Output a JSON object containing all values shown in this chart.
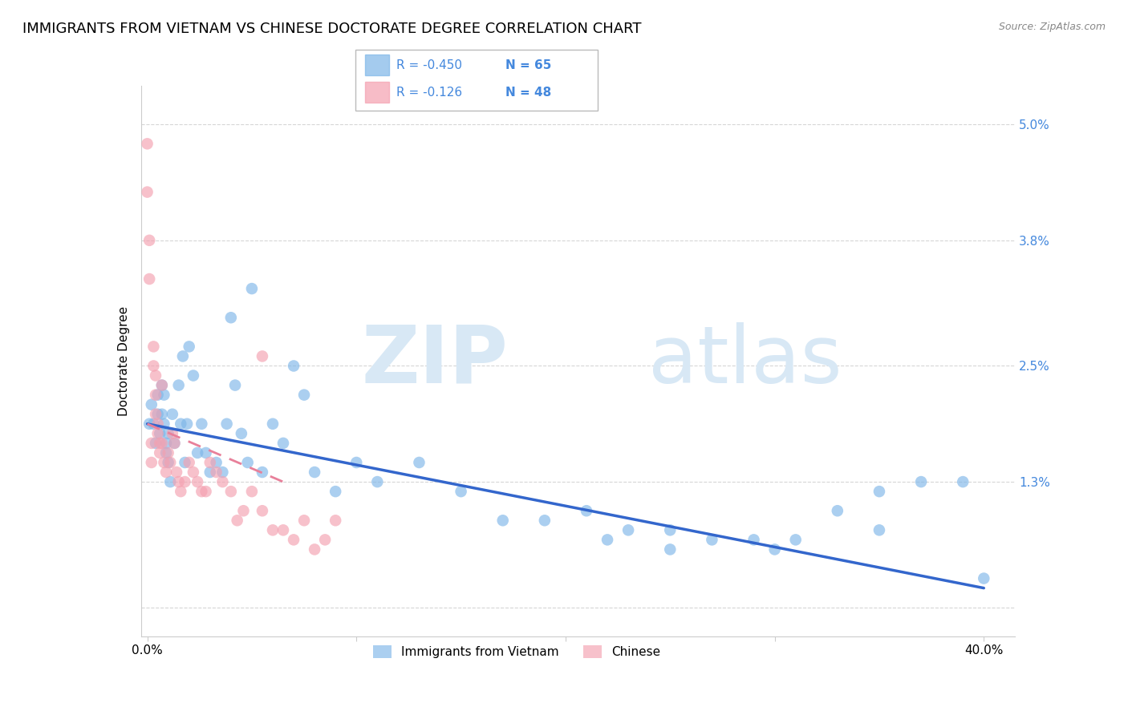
{
  "title": "IMMIGRANTS FROM VIETNAM VS CHINESE DOCTORATE DEGREE CORRELATION CHART",
  "source": "Source: ZipAtlas.com",
  "ylabel": "Doctorate Degree",
  "r1": "-0.450",
  "n1": "65",
  "r2": "-0.126",
  "n2": "48",
  "color_vietnam": "#7EB6E8",
  "color_chinese": "#F4A0B0",
  "color_trendline_vietnam": "#3366CC",
  "color_trendline_chinese": "#E8809A",
  "background_color": "#FFFFFF",
  "grid_color": "#CCCCCC",
  "watermark_zip": "ZIP",
  "watermark_atlas": "atlas",
  "title_fontsize": 13,
  "axis_label_fontsize": 11,
  "tick_fontsize": 11,
  "legend1_label": "Immigrants from Vietnam",
  "legend2_label": "Chinese",
  "xlim": [
    -0.003,
    0.415
  ],
  "ylim": [
    -0.003,
    0.054
  ],
  "ytick_vals": [
    0.0,
    0.013,
    0.025,
    0.038,
    0.05
  ],
  "ytick_labels": [
    "",
    "1.3%",
    "2.5%",
    "3.8%",
    "5.0%"
  ],
  "xtick_vals": [
    0.0,
    0.1,
    0.2,
    0.3,
    0.4
  ],
  "xtick_labels": [
    "0.0%",
    "",
    "",
    "",
    "40.0%"
  ],
  "vietnam_x": [
    0.001,
    0.002,
    0.003,
    0.004,
    0.005,
    0.005,
    0.006,
    0.007,
    0.007,
    0.008,
    0.008,
    0.009,
    0.009,
    0.01,
    0.01,
    0.011,
    0.012,
    0.013,
    0.015,
    0.016,
    0.017,
    0.018,
    0.019,
    0.02,
    0.022,
    0.024,
    0.026,
    0.028,
    0.03,
    0.033,
    0.036,
    0.038,
    0.04,
    0.042,
    0.045,
    0.048,
    0.05,
    0.055,
    0.06,
    0.065,
    0.07,
    0.075,
    0.08,
    0.09,
    0.1,
    0.11,
    0.13,
    0.15,
    0.17,
    0.19,
    0.21,
    0.23,
    0.25,
    0.27,
    0.29,
    0.31,
    0.33,
    0.35,
    0.37,
    0.39,
    0.22,
    0.25,
    0.3,
    0.35,
    0.4
  ],
  "vietnam_y": [
    0.019,
    0.021,
    0.019,
    0.017,
    0.02,
    0.022,
    0.018,
    0.023,
    0.02,
    0.019,
    0.022,
    0.017,
    0.016,
    0.018,
    0.015,
    0.013,
    0.02,
    0.017,
    0.023,
    0.019,
    0.026,
    0.015,
    0.019,
    0.027,
    0.024,
    0.016,
    0.019,
    0.016,
    0.014,
    0.015,
    0.014,
    0.019,
    0.03,
    0.023,
    0.018,
    0.015,
    0.033,
    0.014,
    0.019,
    0.017,
    0.025,
    0.022,
    0.014,
    0.012,
    0.015,
    0.013,
    0.015,
    0.012,
    0.009,
    0.009,
    0.01,
    0.008,
    0.008,
    0.007,
    0.007,
    0.007,
    0.01,
    0.008,
    0.013,
    0.013,
    0.007,
    0.006,
    0.006,
    0.012,
    0.003
  ],
  "chinese_x": [
    0.0,
    0.0,
    0.001,
    0.001,
    0.002,
    0.002,
    0.003,
    0.003,
    0.004,
    0.004,
    0.004,
    0.005,
    0.005,
    0.006,
    0.006,
    0.007,
    0.007,
    0.008,
    0.009,
    0.01,
    0.011,
    0.012,
    0.013,
    0.014,
    0.015,
    0.016,
    0.018,
    0.02,
    0.022,
    0.024,
    0.026,
    0.028,
    0.03,
    0.033,
    0.036,
    0.04,
    0.043,
    0.046,
    0.05,
    0.055,
    0.06,
    0.065,
    0.07,
    0.075,
    0.08,
    0.085,
    0.09,
    0.055
  ],
  "chinese_y": [
    0.048,
    0.043,
    0.038,
    0.034,
    0.017,
    0.015,
    0.027,
    0.025,
    0.024,
    0.022,
    0.02,
    0.019,
    0.018,
    0.017,
    0.016,
    0.023,
    0.017,
    0.015,
    0.014,
    0.016,
    0.015,
    0.018,
    0.017,
    0.014,
    0.013,
    0.012,
    0.013,
    0.015,
    0.014,
    0.013,
    0.012,
    0.012,
    0.015,
    0.014,
    0.013,
    0.012,
    0.009,
    0.01,
    0.012,
    0.01,
    0.008,
    0.008,
    0.007,
    0.009,
    0.006,
    0.007,
    0.009,
    0.026
  ],
  "vn_trendline_x": [
    0.0,
    0.4
  ],
  "vn_trendline_y": [
    0.019,
    0.002
  ],
  "cn_trendline_x": [
    0.0,
    0.065
  ],
  "cn_trendline_y": [
    0.019,
    0.013
  ]
}
